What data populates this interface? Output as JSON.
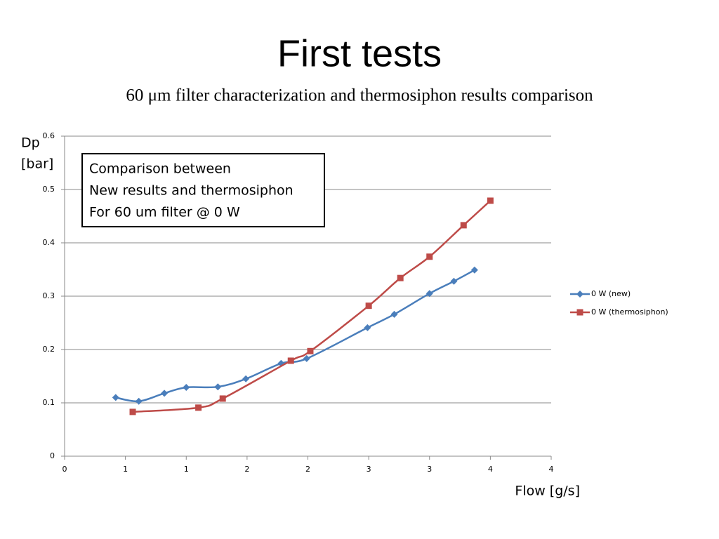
{
  "chart_data": {
    "type": "line",
    "title": "First tests",
    "subtitle": "60 μm filter characterization and thermosiphon results comparison",
    "ylabel": [
      "Dp",
      "[bar]"
    ],
    "xlabel": "Flow [g/s]",
    "annotation": [
      "Comparison between",
      "New results and thermosiphon",
      "For 60 um filter @ 0 W"
    ],
    "xlim": [
      0,
      4
    ],
    "xticks": [
      0,
      {
        "value": 0.5,
        "label": "1"
      },
      1,
      {
        "value": 1.5,
        "label": "2"
      },
      2,
      {
        "value": 2.5,
        "label": "3"
      },
      3,
      {
        "value": 3.5,
        "label": "4"
      },
      4
    ],
    "ylim": [
      0,
      0.6
    ],
    "yticks": [
      0,
      0.1,
      0.2,
      0.3,
      0.4,
      0.5,
      0.6
    ],
    "grid": true,
    "legend": "right",
    "series": [
      {
        "name": "0 W (new)",
        "color": "#4a7ebb",
        "marker": "diamond",
        "x": [
          0.42,
          0.61,
          0.82,
          1.0,
          1.26,
          1.49,
          1.78,
          1.99,
          2.49,
          2.71,
          3.0,
          3.2,
          3.37
        ],
        "values": [
          0.11,
          0.103,
          0.118,
          0.129,
          0.13,
          0.145,
          0.174,
          0.183,
          0.241,
          0.266,
          0.305,
          0.328,
          0.349
        ]
      },
      {
        "name": "0 W (thermosiphon)",
        "color": "#be4b48",
        "marker": "square",
        "x": [
          0.56,
          1.1,
          1.3,
          1.86,
          2.02,
          2.5,
          2.76,
          3.0,
          3.28,
          3.5
        ],
        "values": [
          0.083,
          0.091,
          0.108,
          0.179,
          0.197,
          0.282,
          0.334,
          0.374,
          0.433,
          0.479
        ]
      }
    ]
  }
}
